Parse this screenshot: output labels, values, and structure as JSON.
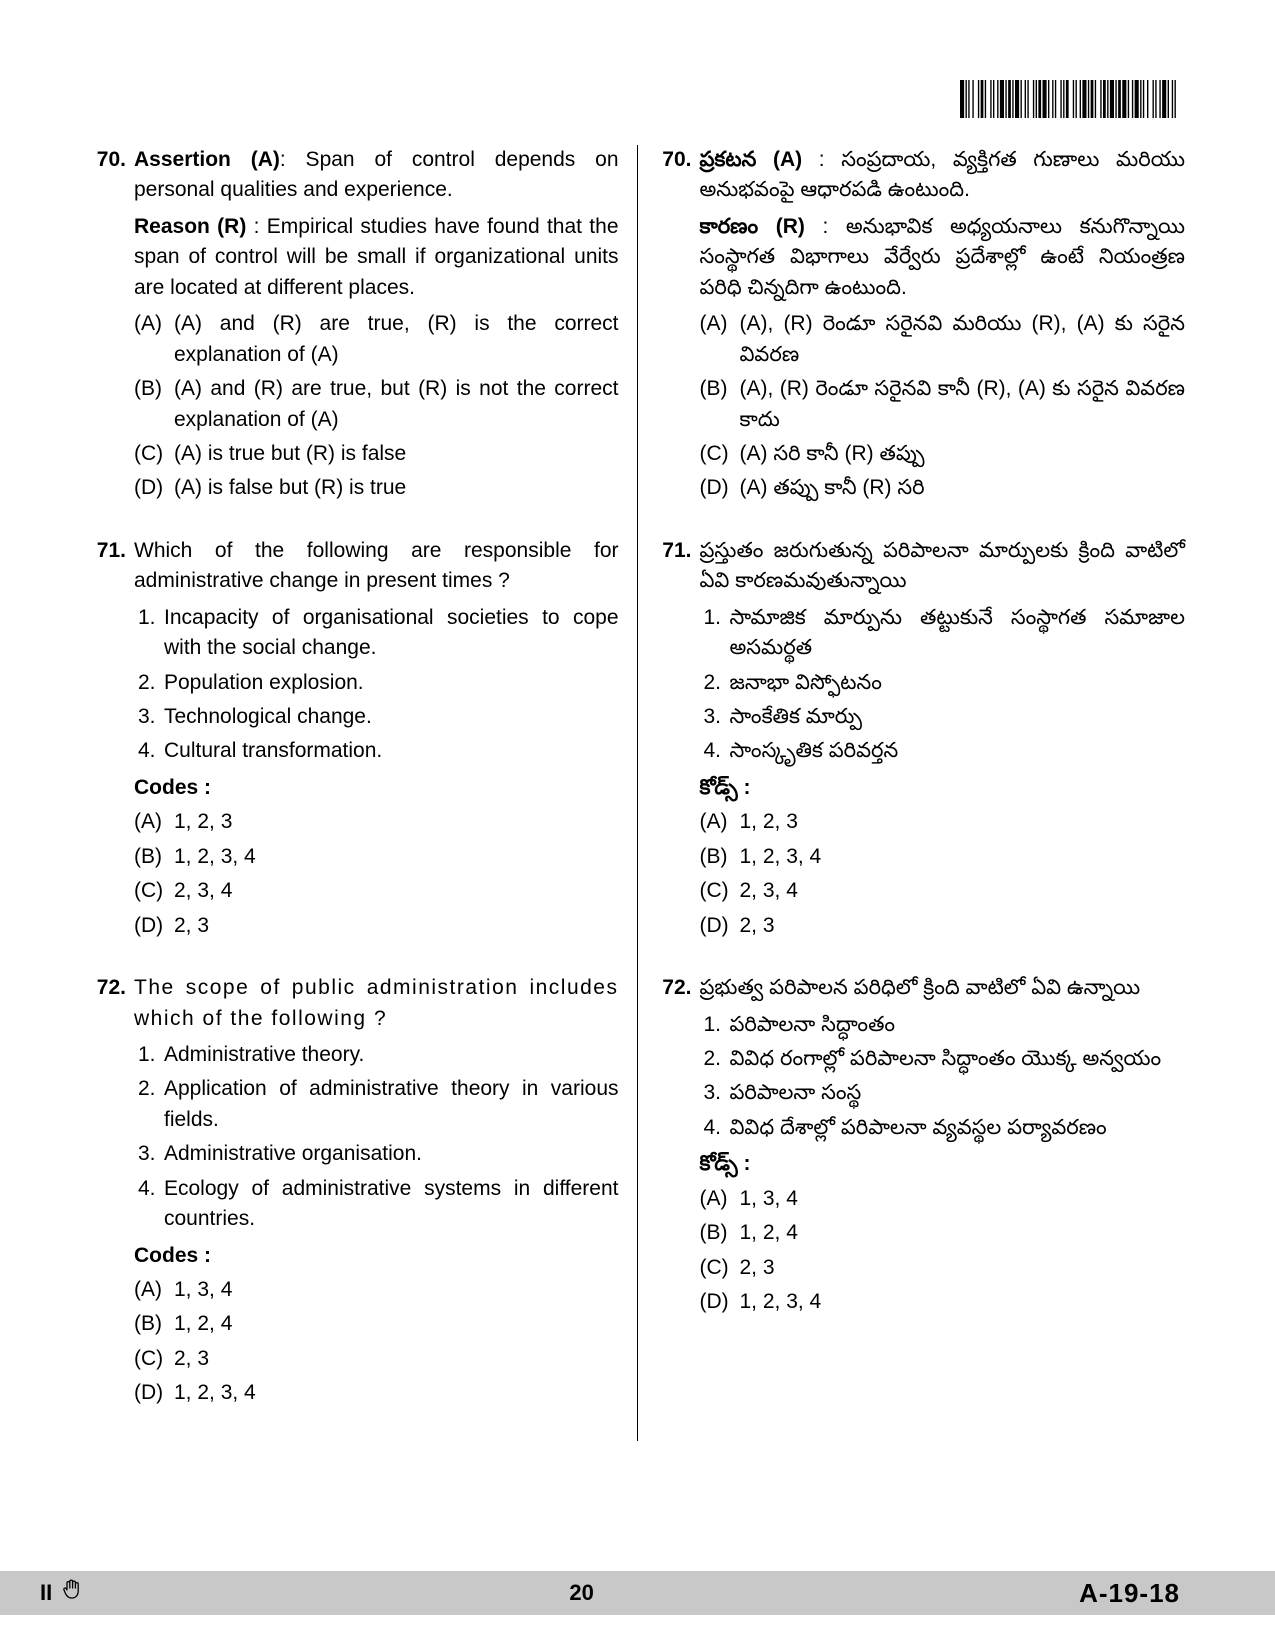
{
  "page": {
    "number": "20",
    "code": "A-19-18",
    "paper": "II"
  },
  "barcode": {
    "bars": [
      3,
      1,
      1,
      1,
      1,
      2,
      1,
      3,
      1,
      1,
      2,
      1,
      1,
      3,
      1,
      1,
      1,
      2,
      1,
      1,
      3,
      1,
      1,
      1,
      2,
      1,
      1,
      1,
      3,
      1,
      1,
      2,
      1,
      1,
      1,
      3,
      1,
      1,
      1,
      1,
      2,
      1,
      3,
      1,
      1,
      2,
      1,
      1,
      1,
      3,
      1,
      1,
      1,
      1,
      2,
      3,
      1,
      1,
      1,
      2,
      1,
      1,
      3,
      1,
      1,
      1,
      2,
      1,
      1,
      3,
      1,
      1,
      2,
      1,
      1,
      1,
      3,
      1,
      1,
      1,
      2,
      1,
      3,
      1,
      1,
      2,
      1,
      1,
      3,
      1,
      1,
      1,
      1,
      2,
      1,
      3,
      1,
      1,
      1,
      2,
      1,
      1,
      3,
      1,
      1,
      2,
      1,
      1,
      1,
      3
    ],
    "bg": "#ffffff",
    "bar_color": "#000000"
  },
  "left": {
    "q70": {
      "num": "70.",
      "assertion_lbl": "Assertion (A)",
      "assertion_txt": ": Span of control depends on personal qualities and experience.",
      "reason_lbl": "Reason (R)",
      "reason_txt": " : Empirical studies have found that the span of control will be small if organizational units are located at different places.",
      "opts": {
        "a_lbl": "(A)",
        "a": "(A) and (R) are true, (R) is the correct explanation of (A)",
        "b_lbl": "(B)",
        "b": "(A) and (R) are true, but (R) is not the correct explanation of (A)",
        "c_lbl": "(C)",
        "c": "(A) is true but (R) is false",
        "d_lbl": "(D)",
        "d": "(A) is false but (R) is true"
      }
    },
    "q71": {
      "num": "71.",
      "stem": "Which of the following are responsible for administrative change in present times ?",
      "items": {
        "i1_lbl": "1.",
        "i1": "Incapacity of organisational societies to cope with the social change.",
        "i2_lbl": "2.",
        "i2": "Population explosion.",
        "i3_lbl": "3.",
        "i3": "Technological change.",
        "i4_lbl": "4.",
        "i4": "Cultural transformation."
      },
      "codes_lbl": "Codes :",
      "opts": {
        "a_lbl": "(A)",
        "a": "1, 2, 3",
        "b_lbl": "(B)",
        "b": "1, 2, 3, 4",
        "c_lbl": "(C)",
        "c": "2, 3, 4",
        "d_lbl": "(D)",
        "d": "2, 3"
      }
    },
    "q72": {
      "num": "72.",
      "stem": "The scope of public administration includes which of the following ?",
      "items": {
        "i1_lbl": "1.",
        "i1": "Administrative theory.",
        "i2_lbl": "2.",
        "i2": "Application of administrative theory in various fields.",
        "i3_lbl": "3.",
        "i3": "Administrative organisation.",
        "i4_lbl": "4.",
        "i4": "Ecology of administrative systems in different countries."
      },
      "codes_lbl": "Codes :",
      "opts": {
        "a_lbl": "(A)",
        "a": "1, 3, 4",
        "b_lbl": "(B)",
        "b": "1, 2, 4",
        "c_lbl": "(C)",
        "c": "2, 3",
        "d_lbl": "(D)",
        "d": "1, 2, 3, 4"
      }
    }
  },
  "right": {
    "q70": {
      "num": "70.",
      "assertion_lbl": "ప్రకటన (A)",
      "assertion_txt": " : సంప్రదాయ, వ్యక్తిగత గుణాలు మరియు అనుభవంపై ఆధారపడి ఉంటుంది.",
      "reason_lbl": "కారణం (R)",
      "reason_txt": " : అనుభావిక అధ్యయనాలు కనుగొన్నాయి సంస్థాగత విభాగాలు వేర్వేరు ప్రదేశాల్లో ఉంటే నియంత్రణ పరిధి చిన్నదిగా ఉంటుంది.",
      "opts": {
        "a_lbl": "(A)",
        "a": "(A), (R) రెండూ సరైనవి మరియు (R), (A) కు సరైన వివరణ",
        "b_lbl": "(B)",
        "b": "(A), (R) రెండూ సరైనవి కానీ (R), (A) కు సరైన వివరణ కాదు",
        "c_lbl": "(C)",
        "c": "(A) సరి కానీ (R) తప్పు",
        "d_lbl": "(D)",
        "d": "(A) తప్పు కానీ (R) సరి"
      }
    },
    "q71": {
      "num": "71.",
      "stem": "ప్రస్తుతం జరుగుతున్న పరిపాలనా మార్పులకు క్రింది వాటిలో ఏవి కారణమవుతున్నాయి",
      "items": {
        "i1_lbl": "1.",
        "i1": "సామాజిక మార్పును తట్టుకునే సంస్థాగత సమాజాల అసమర్థత",
        "i2_lbl": "2.",
        "i2": "జనాభా విస్ఫోటనం",
        "i3_lbl": "3.",
        "i3": "సాంకేతిక మార్పు",
        "i4_lbl": "4.",
        "i4": "సాంస్కృతిక పరివర్తన"
      },
      "codes_lbl": "కోడ్స్ :",
      "opts": {
        "a_lbl": "(A)",
        "a": "1, 2, 3",
        "b_lbl": "(B)",
        "b": "1, 2, 3, 4",
        "c_lbl": "(C)",
        "c": "2, 3, 4",
        "d_lbl": "(D)",
        "d": "2, 3"
      }
    },
    "q72": {
      "num": "72.",
      "stem": "ప్రభుత్వ పరిపాలన పరిధిలో క్రింది వాటిలో ఏవి ఉన్నాయి",
      "items": {
        "i1_lbl": "1.",
        "i1": "పరిపాలనా సిద్ధాంతం",
        "i2_lbl": "2.",
        "i2": "వివిధ రంగాల్లో పరిపాలనా సిద్ధాంతం యొక్క అన్వయం",
        "i3_lbl": "3.",
        "i3": "పరిపాలనా సంస్థ",
        "i4_lbl": "4.",
        "i4": "వివిధ దేశాల్లో పరిపాలనా వ్యవస్థల పర్యావరణం"
      },
      "codes_lbl": "కోడ్స్ :",
      "opts": {
        "a_lbl": "(A)",
        "a": "1, 3, 4",
        "b_lbl": "(B)",
        "b": "1, 2, 4",
        "c_lbl": "(C)",
        "c": "2, 3",
        "d_lbl": "(D)",
        "d": "1, 2, 3, 4"
      }
    }
  }
}
